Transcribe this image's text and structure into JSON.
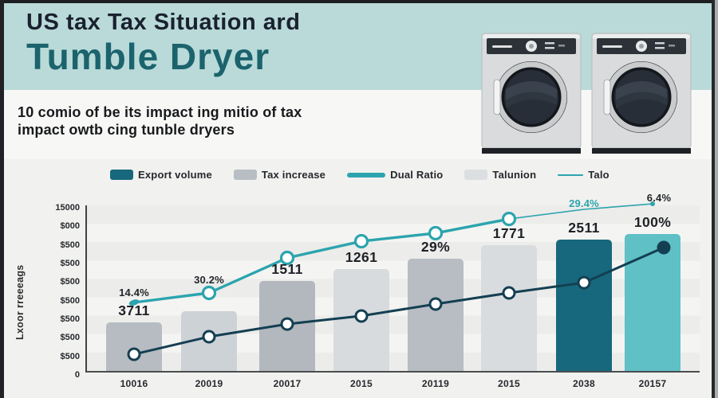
{
  "header": {
    "title_line1": "US tax Tax Situation ard",
    "title_line2": "Tumble Dryer",
    "bg_color": "#b9dad8",
    "title_color": "#1a2130",
    "accent_color": "#1b636d"
  },
  "subtitle": {
    "line1": "10 comio of be its impact ing mitio of tax",
    "line2": "impact owtb cing tunble dryers"
  },
  "icons": {
    "dryers": [
      "tumble-dryer",
      "tumble-dryer"
    ]
  },
  "legend": {
    "items": [
      {
        "label": "Export volume",
        "swatch": "rect",
        "color": "#17687c"
      },
      {
        "label": "Tax increase",
        "swatch": "rect",
        "color": "#b8bec4"
      },
      {
        "label": "Dual Ratio",
        "swatch": "line",
        "color": "#2ba4ae"
      },
      {
        "label": "Talunion",
        "swatch": "rect",
        "color": "#dcdfe1"
      },
      {
        "label": "Talo",
        "swatch": "thin-line",
        "color": "#2ba4ae"
      }
    ]
  },
  "chart_data": {
    "type": "bar",
    "subtype": "bar and line combo",
    "categories": [
      "10016",
      "20019",
      "20017",
      "2015",
      "20119",
      "2015",
      "2038",
      "20157"
    ],
    "y_axis": {
      "title": "Lxoor rreeeags",
      "ticks": [
        "15000",
        "$000",
        "$500",
        "$500",
        "$500",
        "$500",
        "$500",
        "$500",
        "$500",
        "0"
      ],
      "range": [
        0,
        15000
      ],
      "grid": "horizontal striped bands"
    },
    "bars": {
      "name": "Tax increase / Talunion",
      "values": [
        4400,
        5400,
        8150,
        9230,
        10170,
        11390,
        11900,
        12400
      ],
      "labels": [
        "3711",
        "",
        "1511",
        "1261",
        "29%",
        "1771",
        "2511",
        "100%"
      ],
      "colors": [
        "#b6bcc2",
        "#cdd2d6",
        "#b2b8be",
        "#d7dbde",
        "#b7bdc3",
        "#d9dcde",
        "#17687c",
        "#5fc0c6"
      ]
    },
    "series": [
      {
        "name": "Dual Ratio",
        "color": "#2ba4ae",
        "values": [
          6200,
          7070,
          10240,
          11750,
          12480,
          13770,
          14640,
          15140
        ]
      },
      {
        "name": "Export volume",
        "color": "#143f52",
        "values": [
          1510,
          3100,
          4250,
          4980,
          6060,
          7070,
          8000,
          11180
        ]
      }
    ],
    "annotations": [
      {
        "text": "14.4%",
        "x_index": 0,
        "color": "#23262b"
      },
      {
        "text": "30.2%",
        "x_index": 1,
        "color": "#23262b"
      },
      {
        "text": "29.4%",
        "x_index": 6,
        "color": "#2ba4ae"
      },
      {
        "text": "6.4%",
        "x_index": 7,
        "color": "#23262b"
      }
    ],
    "legend_position": "top"
  },
  "frame": {
    "border_color": "#1d1f23",
    "right_edge_color": "#a9adb0"
  }
}
